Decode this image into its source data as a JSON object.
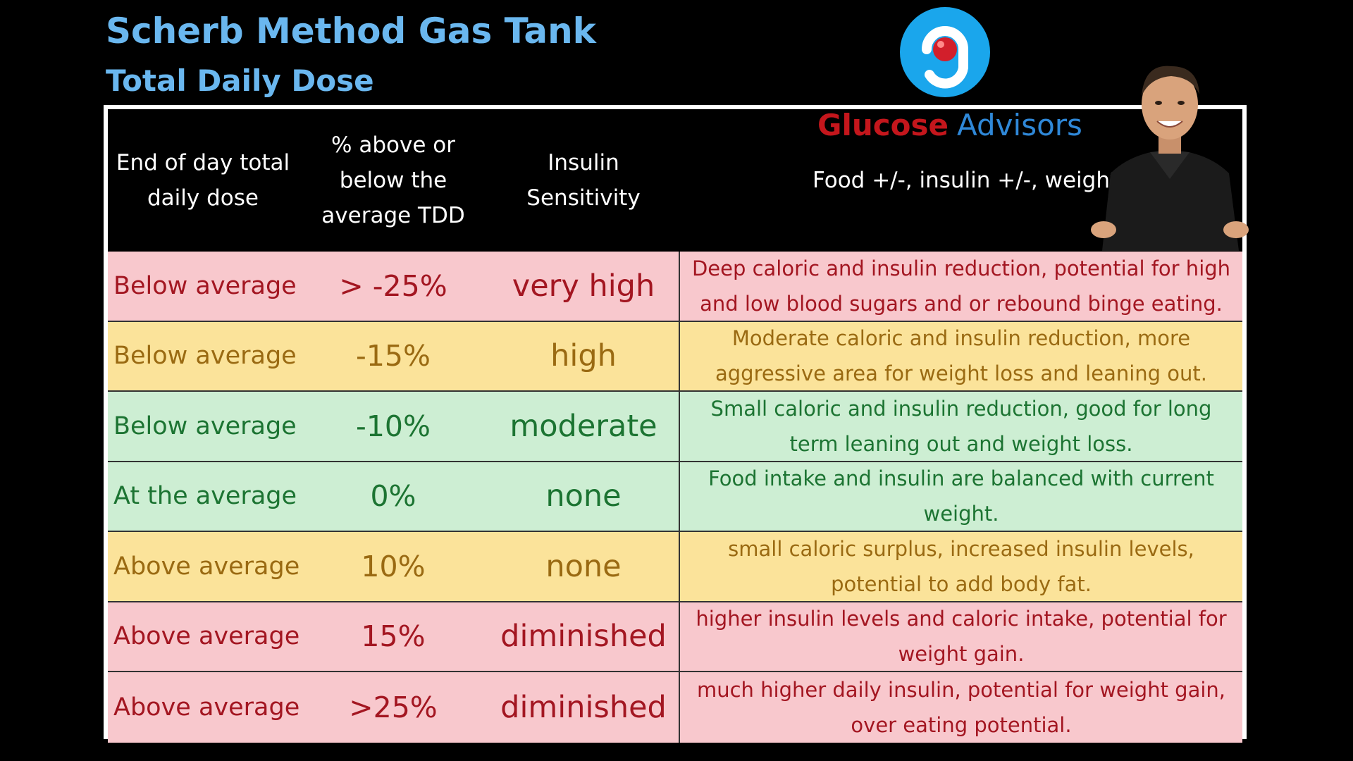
{
  "title": "Scherb Method Gas Tank",
  "subtitle": "Total Daily Dose",
  "brand": {
    "word1": "Glucose",
    "word2": "Advisors",
    "logo_icon": "glucose-advisors-g-logo-icon",
    "colors": {
      "red": "#c4161c",
      "blue": "#2f88d8",
      "logo_circle": "#1aa6ec"
    }
  },
  "table": {
    "headers": [
      "End of day total\ndaily dose",
      "% above or\nbelow the\naverage TDD",
      "Insulin\nSensitivity",
      "Food +/-, insulin +/-, weight +/-"
    ],
    "rows": [
      {
        "level": "Below average",
        "percent": "> -25%",
        "sensitivity": "very high",
        "description": "Deep caloric and insulin reduction, potential for high and low blood sugars and or rebound binge eating.",
        "color": "pink"
      },
      {
        "level": "Below average",
        "percent": "-15%",
        "sensitivity": "high",
        "description": "Moderate caloric and insulin reduction, more aggressive area for weight loss and leaning out.",
        "color": "yellow"
      },
      {
        "level": "Below average",
        "percent": "-10%",
        "sensitivity": "moderate",
        "description": "Small caloric and insulin reduction, good for long term leaning out and weight loss.",
        "color": "green"
      },
      {
        "level": "At the average",
        "percent": "0%",
        "sensitivity": "none",
        "description": "Food intake and insulin are balanced with current weight.",
        "color": "green"
      },
      {
        "level": "Above average",
        "percent": "10%",
        "sensitivity": "none",
        "description": "small caloric surplus, increased insulin levels, potential to add body fat.",
        "color": "yellow"
      },
      {
        "level": "Above average",
        "percent": "15%",
        "sensitivity": "diminished",
        "description": "higher insulin levels and caloric intake, potential for weight gain.",
        "color": "pink"
      },
      {
        "level": "Above average",
        "percent": ">25%",
        "sensitivity": "diminished",
        "description": "much higher daily insulin, potential for weight gain, over eating potential.",
        "color": "pink"
      }
    ]
  },
  "colors": {
    "title": "#6ab7ef",
    "pink_bg": "#f8c8cd",
    "pink_text": "#a31621",
    "yellow_bg": "#fbe39a",
    "yellow_text": "#9a6a12",
    "green_bg": "#cdeed3",
    "green_text": "#1c7432"
  },
  "presenter_image": "presenter-photo"
}
